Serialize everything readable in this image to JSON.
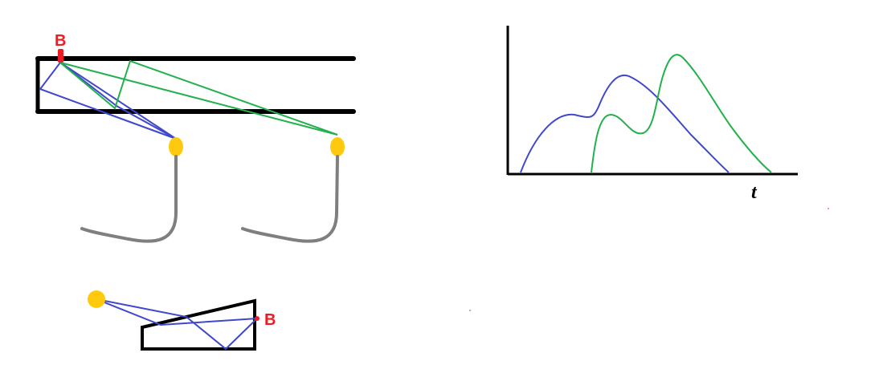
{
  "labels": {
    "point_b_top": "B",
    "point_b_bottom": "B",
    "time_axis": "t"
  },
  "colors": {
    "wall": "#000000",
    "blue_path": "#3f48cc",
    "green_path": "#22b14c",
    "marker_b": "#ed1c24",
    "source": "#ffc90e",
    "cable": "#7f7f7f"
  },
  "chart_data": {
    "type": "line",
    "xlabel": "t",
    "ylabel": "",
    "title": "",
    "series": [
      {
        "color": "#3f48cc"
      },
      {
        "color": "#22b14c"
      }
    ]
  }
}
